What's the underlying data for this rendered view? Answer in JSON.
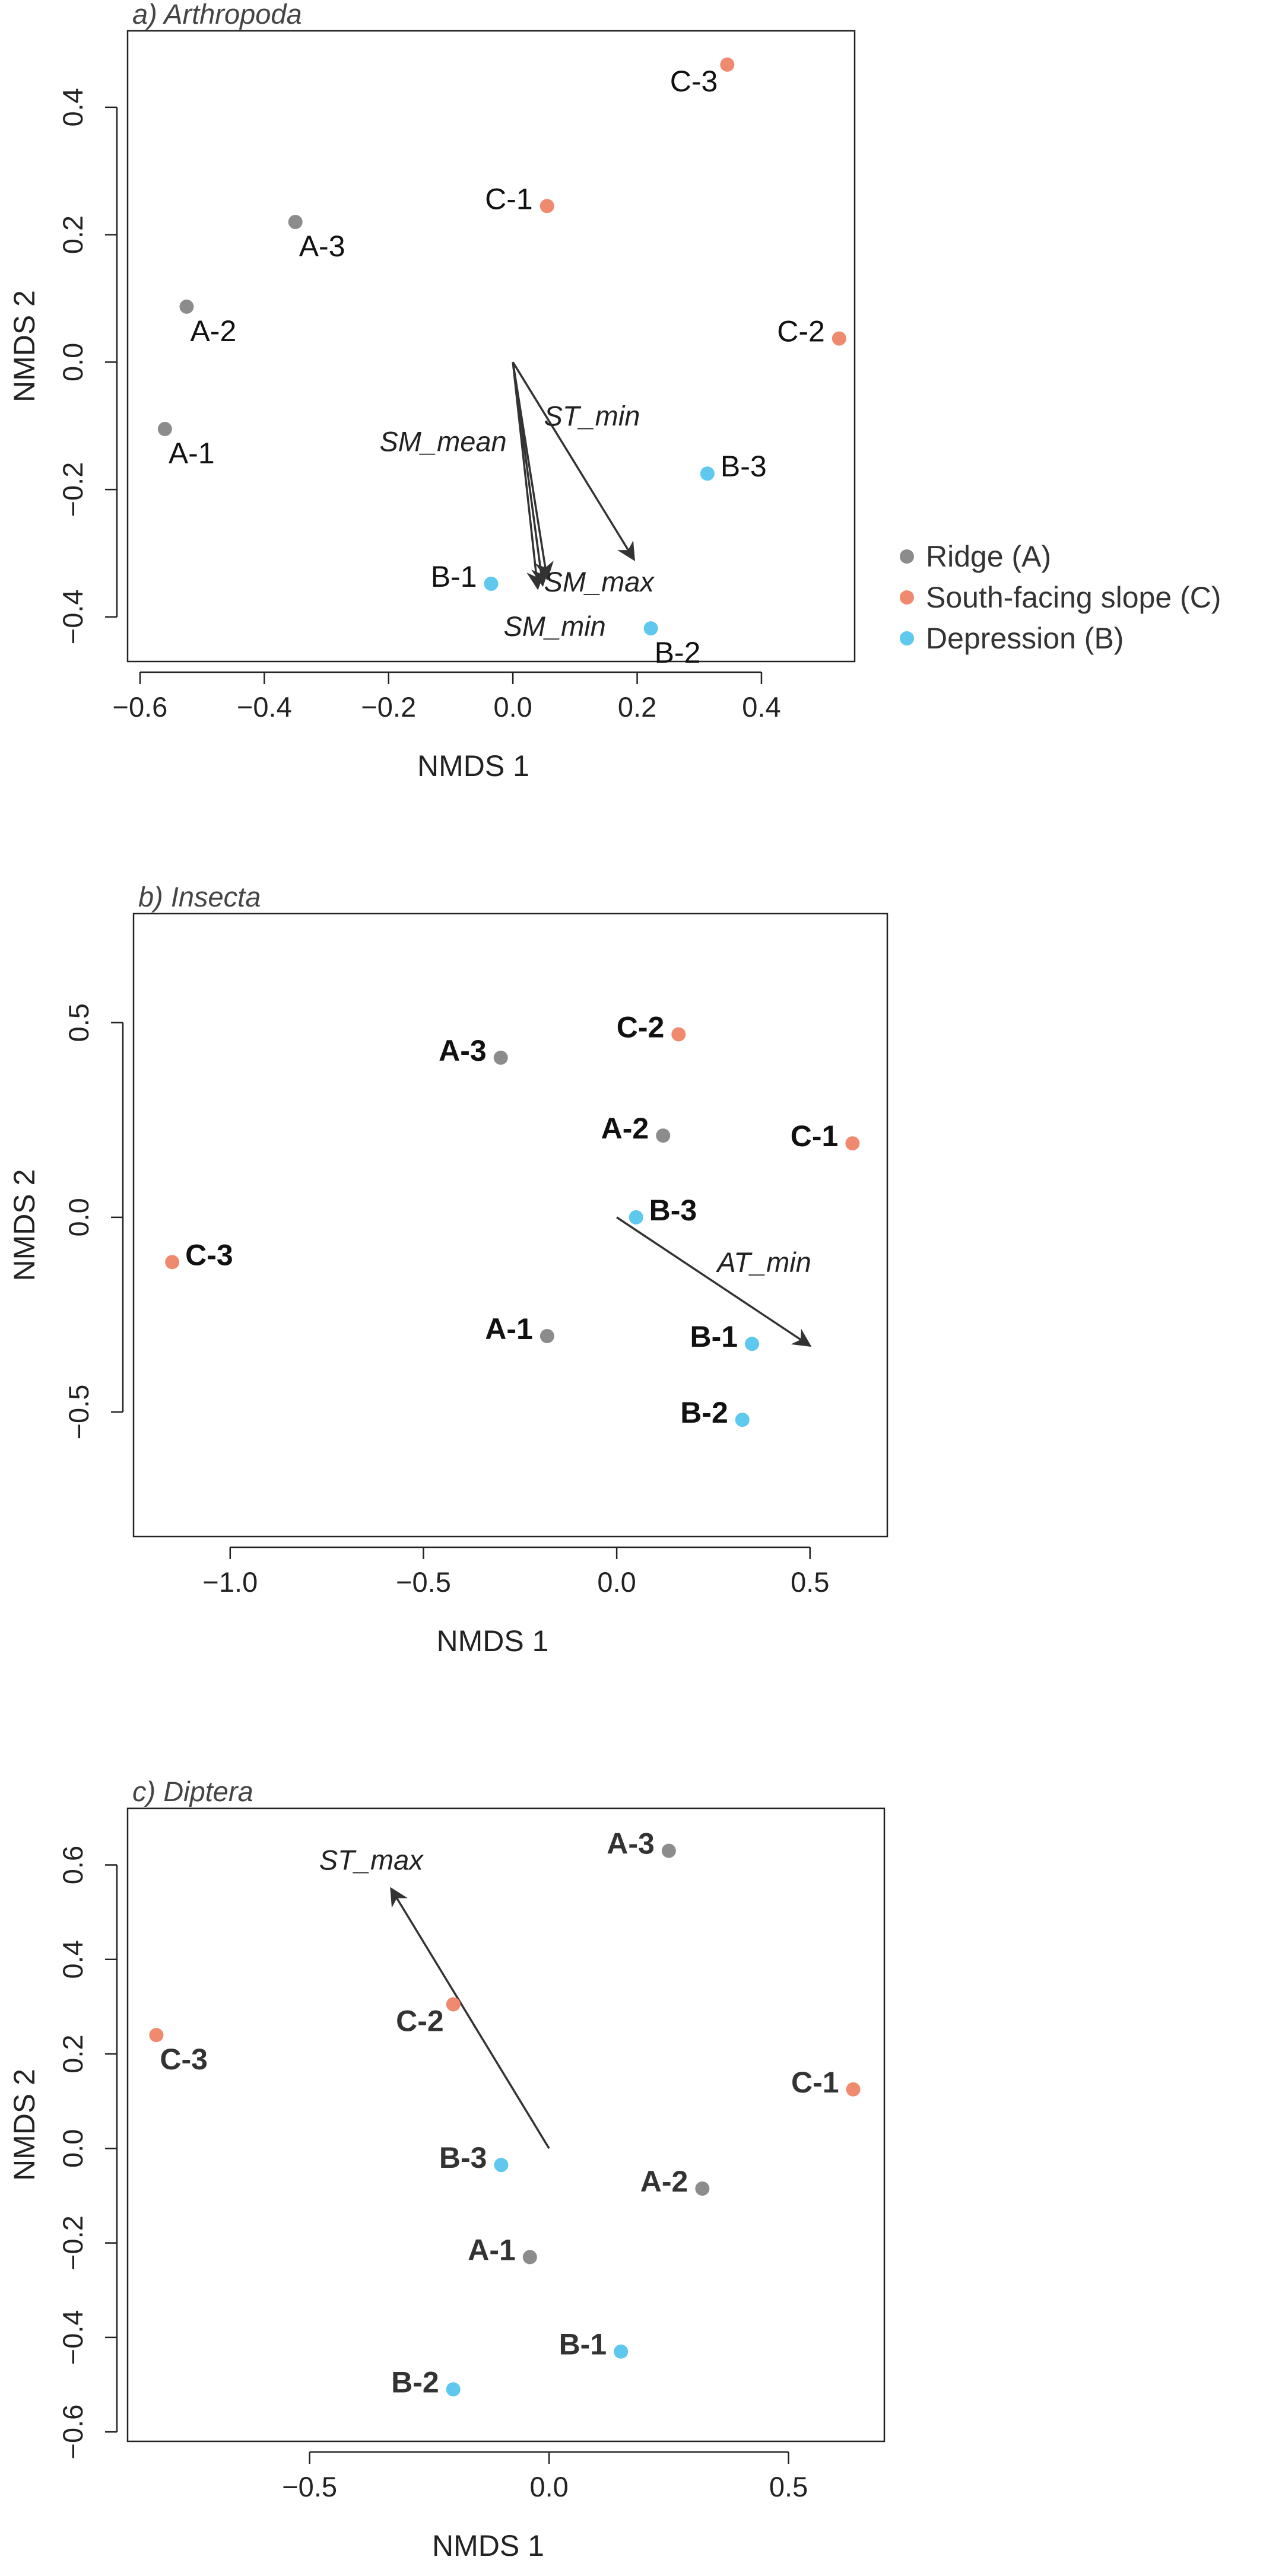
{
  "colors": {
    "ridge": "#8c8c8c",
    "slope": "#f08a6e",
    "depression": "#5ec8ee",
    "axis": "#222222",
    "arrow": "#333333"
  },
  "legend": {
    "items": [
      {
        "label": "Ridge (A)",
        "group": "ridge"
      },
      {
        "label": "South-facing slope (C)",
        "group": "slope"
      },
      {
        "label": "Depression (B)",
        "group": "depression"
      }
    ]
  },
  "chart_data": [
    {
      "type": "scatter",
      "title": "a) Arthropoda",
      "xlabel": "NMDS 1",
      "ylabel": "NMDS 2",
      "xlim": [
        -0.62,
        0.55
      ],
      "ylim": [
        -0.47,
        0.52
      ],
      "xticks": [
        -0.6,
        -0.4,
        -0.2,
        0.0,
        0.2,
        0.4
      ],
      "xtick_labels": [
        "−0.6",
        "−0.4",
        "−0.2",
        "0.0",
        "0.2",
        "0.4"
      ],
      "yticks": [
        -0.4,
        -0.2,
        0.0,
        0.2,
        0.4
      ],
      "ytick_labels": [
        "−0.4",
        "−0.2",
        "0.0",
        "0.2",
        "0.4"
      ],
      "label_weight": "normal",
      "label_color": "#111111",
      "points": [
        {
          "label": "A-1",
          "x": -0.56,
          "y": -0.105,
          "group": "ridge",
          "lpos": "below-right"
        },
        {
          "label": "A-2",
          "x": -0.525,
          "y": 0.087,
          "group": "ridge",
          "lpos": "below-right"
        },
        {
          "label": "A-3",
          "x": -0.35,
          "y": 0.22,
          "group": "ridge",
          "lpos": "below-right"
        },
        {
          "label": "C-1",
          "x": 0.055,
          "y": 0.245,
          "group": "slope",
          "lpos": "left"
        },
        {
          "label": "C-2",
          "x": 0.525,
          "y": 0.037,
          "group": "slope",
          "lpos": "left"
        },
        {
          "label": "C-3",
          "x": 0.345,
          "y": 0.467,
          "group": "slope",
          "lpos": "below-left"
        },
        {
          "label": "B-1",
          "x": -0.035,
          "y": -0.348,
          "group": "depression",
          "lpos": "left"
        },
        {
          "label": "B-2",
          "x": 0.222,
          "y": -0.418,
          "group": "depression",
          "lpos": "below-right"
        },
        {
          "label": "B-3",
          "x": 0.313,
          "y": -0.175,
          "group": "depression",
          "lpos": "right"
        }
      ],
      "vectors": [
        {
          "label": "SM_mean",
          "x": 0.04,
          "y": -0.355,
          "label_x": -0.01,
          "label_y": -0.14,
          "anchor": "end"
        },
        {
          "label": "SM_max",
          "x": 0.055,
          "y": -0.34,
          "label_x": 0.05,
          "label_y": -0.36,
          "anchor": "start"
        },
        {
          "label": "SM_min",
          "x": 0.048,
          "y": -0.35,
          "label_x": -0.015,
          "label_y": -0.43,
          "anchor": "start"
        },
        {
          "label": "ST_min",
          "x": 0.195,
          "y": -0.31,
          "label_x": 0.05,
          "label_y": -0.1,
          "anchor": "start"
        }
      ],
      "show_legend": true
    },
    {
      "type": "scatter",
      "title": "b) Insecta",
      "xlabel": "NMDS 1",
      "ylabel": "NMDS 2",
      "xlim": [
        -1.25,
        0.7
      ],
      "ylim": [
        -0.82,
        0.78
      ],
      "xticks": [
        -1.0,
        -0.5,
        0.0,
        0.5
      ],
      "xtick_labels": [
        "−1.0",
        "−0.5",
        "0.0",
        "0.5"
      ],
      "yticks": [
        -0.5,
        0.0,
        0.5
      ],
      "ytick_labels": [
        "−0.5",
        "0.0",
        "0.5"
      ],
      "label_weight": "bold",
      "label_color": "#111111",
      "points": [
        {
          "label": "A-1",
          "x": -0.18,
          "y": -0.305,
          "group": "ridge",
          "lpos": "left"
        },
        {
          "label": "A-2",
          "x": 0.12,
          "y": 0.21,
          "group": "ridge",
          "lpos": "left"
        },
        {
          "label": "A-3",
          "x": -0.3,
          "y": 0.41,
          "group": "ridge",
          "lpos": "left"
        },
        {
          "label": "C-1",
          "x": 0.61,
          "y": 0.19,
          "group": "slope",
          "lpos": "left"
        },
        {
          "label": "C-2",
          "x": 0.16,
          "y": 0.47,
          "group": "slope",
          "lpos": "left"
        },
        {
          "label": "C-3",
          "x": -1.15,
          "y": -0.115,
          "group": "slope",
          "lpos": "right"
        },
        {
          "label": "B-1",
          "x": 0.35,
          "y": -0.325,
          "group": "depression",
          "lpos": "left"
        },
        {
          "label": "B-2",
          "x": 0.325,
          "y": -0.52,
          "group": "depression",
          "lpos": "left"
        },
        {
          "label": "B-3",
          "x": 0.05,
          "y": 0.0,
          "group": "depression",
          "lpos": "right"
        }
      ],
      "vectors": [
        {
          "label": "AT_min",
          "x": 0.5,
          "y": -0.33,
          "label_x": 0.26,
          "label_y": -0.14,
          "anchor": "start"
        }
      ],
      "show_legend": false
    },
    {
      "type": "scatter",
      "title": "c) Diptera",
      "xlabel": "NMDS 1",
      "ylabel": "NMDS 2",
      "xlim": [
        -0.88,
        0.7
      ],
      "ylim": [
        -0.62,
        0.72
      ],
      "xticks": [
        -0.5,
        0.0,
        0.5
      ],
      "xtick_labels": [
        "−0.5",
        "0.0",
        "0.5"
      ],
      "yticks": [
        -0.6,
        -0.4,
        -0.2,
        0.0,
        0.2,
        0.4,
        0.6
      ],
      "ytick_labels": [
        "−0.6",
        "−0.4",
        "−0.2",
        "0.0",
        "0.2",
        "0.4",
        "0.6"
      ],
      "label_weight": "bold",
      "label_color": "#333333",
      "points": [
        {
          "label": "A-1",
          "x": -0.04,
          "y": -0.23,
          "group": "ridge",
          "lpos": "left"
        },
        {
          "label": "A-2",
          "x": 0.32,
          "y": -0.085,
          "group": "ridge",
          "lpos": "left"
        },
        {
          "label": "A-3",
          "x": 0.25,
          "y": 0.63,
          "group": "ridge",
          "lpos": "left"
        },
        {
          "label": "C-1",
          "x": 0.635,
          "y": 0.125,
          "group": "slope",
          "lpos": "left"
        },
        {
          "label": "C-2",
          "x": -0.2,
          "y": 0.305,
          "group": "slope",
          "lpos": "below-left"
        },
        {
          "label": "C-3",
          "x": -0.82,
          "y": 0.24,
          "group": "slope",
          "lpos": "below-right"
        },
        {
          "label": "B-1",
          "x": 0.15,
          "y": -0.43,
          "group": "depression",
          "lpos": "left"
        },
        {
          "label": "B-2",
          "x": -0.2,
          "y": -0.51,
          "group": "depression",
          "lpos": "left"
        },
        {
          "label": "B-3",
          "x": -0.1,
          "y": -0.035,
          "group": "depression",
          "lpos": "left"
        }
      ],
      "vectors": [
        {
          "label": "ST_max",
          "x": -0.33,
          "y": 0.55,
          "label_x": -0.48,
          "label_y": 0.59,
          "anchor": "start"
        }
      ],
      "show_legend": false
    }
  ]
}
